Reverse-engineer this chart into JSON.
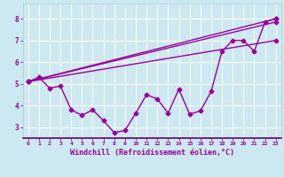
{
  "xlabel": "Windchill (Refroidissement éolien,°C)",
  "background_color": "#cce8f0",
  "line_color": "#990099",
  "grid_color": "#ffffff",
  "xlim": [
    -0.5,
    23.5
  ],
  "ylim": [
    2.5,
    8.7
  ],
  "xticks": [
    0,
    1,
    2,
    3,
    4,
    5,
    6,
    7,
    8,
    9,
    10,
    11,
    12,
    13,
    14,
    15,
    16,
    17,
    18,
    19,
    20,
    21,
    22,
    23
  ],
  "yticks": [
    3,
    4,
    5,
    6,
    7,
    8
  ],
  "line1_x": [
    0,
    1,
    2,
    3,
    4,
    5,
    6,
    7,
    8,
    9,
    10,
    11,
    12,
    13,
    14,
    15,
    16,
    17,
    18,
    19,
    20,
    21,
    22,
    23
  ],
  "line1_y": [
    5.1,
    5.3,
    4.8,
    4.9,
    3.8,
    3.55,
    3.8,
    3.3,
    2.75,
    2.85,
    3.65,
    4.5,
    4.3,
    3.65,
    4.75,
    3.6,
    3.75,
    4.65,
    6.5,
    7.0,
    7.0,
    6.5,
    7.85,
    8.0
  ],
  "line2_x": [
    0,
    23
  ],
  "line2_y": [
    5.1,
    8.0
  ],
  "line3_x": [
    0,
    23
  ],
  "line3_y": [
    5.1,
    7.85
  ],
  "line4_x": [
    0,
    23
  ],
  "line4_y": [
    5.1,
    7.0
  ]
}
